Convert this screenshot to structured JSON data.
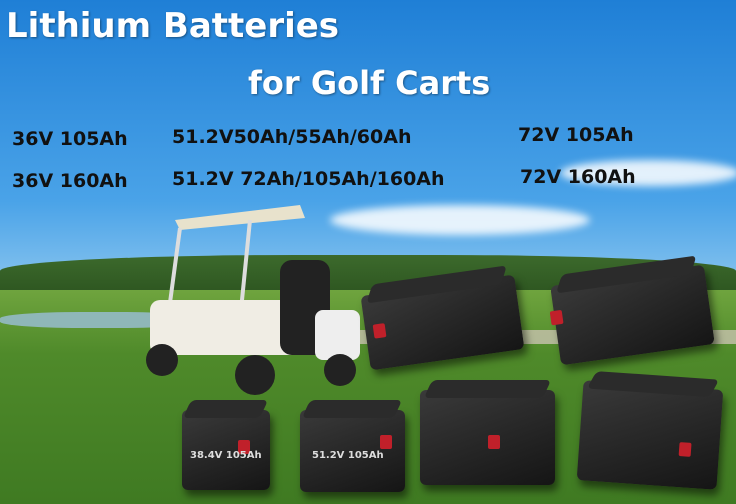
{
  "title_line1": "Lithium Batteries",
  "title_line2": "for Golf Carts",
  "specs": {
    "col1": [
      "36V 105Ah",
      "36V 160Ah"
    ],
    "col2": [
      "51.2V50Ah/55Ah/60Ah",
      "51.2V 72Ah/105Ah/160Ah"
    ],
    "col3": [
      "72V 105Ah",
      "72V 160Ah"
    ]
  },
  "battery_labels": [
    "38.4V 105Ah",
    "51.2V 105Ah"
  ],
  "colors": {
    "title": "#ffffff",
    "spec_text": "#111111",
    "terminal": "#c0202a"
  }
}
